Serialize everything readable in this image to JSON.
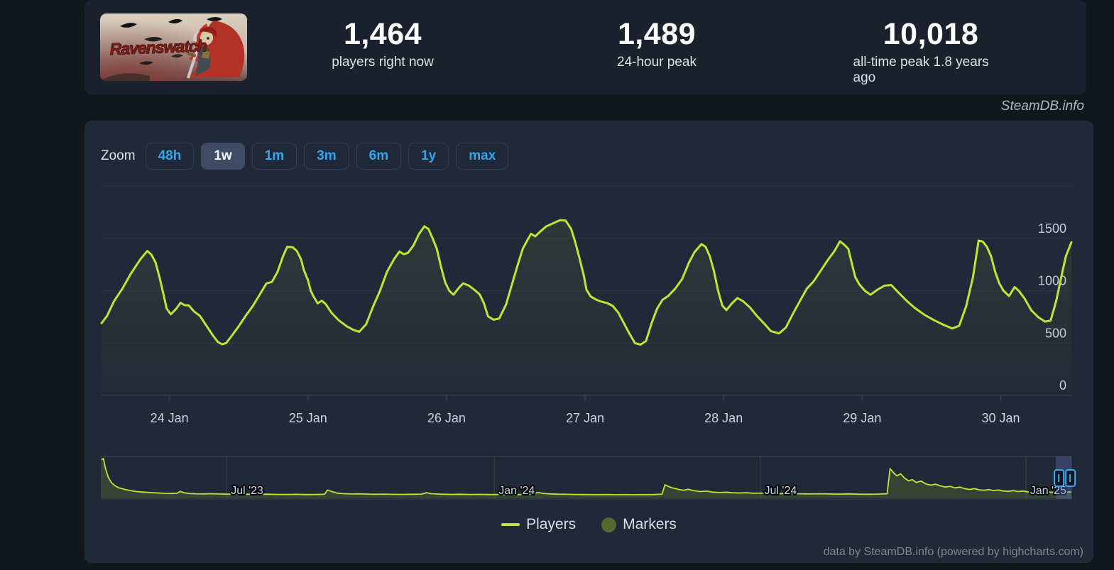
{
  "header": {
    "game_title": "Ravenswatch",
    "stats": [
      {
        "value": "1,464",
        "label": "players right now"
      },
      {
        "value": "1,489",
        "label": "24-hour peak"
      },
      {
        "value": "10,018",
        "label": "all-time peak 1.8 years ago"
      }
    ]
  },
  "watermark": "SteamDB.info",
  "toolbar": {
    "zoom_label": "Zoom",
    "buttons": [
      {
        "label": "48h",
        "active": false
      },
      {
        "label": "1w",
        "active": true
      },
      {
        "label": "1m",
        "active": false
      },
      {
        "label": "3m",
        "active": false
      },
      {
        "label": "6m",
        "active": false
      },
      {
        "label": "1y",
        "active": false
      },
      {
        "label": "max",
        "active": false
      }
    ]
  },
  "chart_data": {
    "type": "line",
    "series_name": "Players",
    "x_axis": {
      "unit": "day",
      "labels": [
        "24 Jan",
        "25 Jan",
        "26 Jan",
        "27 Jan",
        "28 Jan",
        "29 Jan",
        "30 Jan"
      ],
      "range_days": [
        -0.49,
        6.51
      ]
    },
    "y_axis": {
      "ticks": [
        0,
        500,
        1000,
        1500
      ],
      "grid_max": 2000
    },
    "points": [
      [
        -0.49,
        690
      ],
      [
        -0.45,
        760
      ],
      [
        -0.4,
        900
      ],
      [
        -0.34,
        1020
      ],
      [
        -0.28,
        1160
      ],
      [
        -0.21,
        1300
      ],
      [
        -0.16,
        1380
      ],
      [
        -0.13,
        1345
      ],
      [
        -0.1,
        1270
      ],
      [
        -0.07,
        1120
      ],
      [
        -0.04,
        950
      ],
      [
        -0.02,
        830
      ],
      [
        0.01,
        775
      ],
      [
        0.05,
        830
      ],
      [
        0.08,
        885
      ],
      [
        0.11,
        862
      ],
      [
        0.14,
        860
      ],
      [
        0.18,
        800
      ],
      [
        0.22,
        760
      ],
      [
        0.26,
        680
      ],
      [
        0.31,
        580
      ],
      [
        0.35,
        510
      ],
      [
        0.38,
        488
      ],
      [
        0.41,
        500
      ],
      [
        0.45,
        570
      ],
      [
        0.5,
        660
      ],
      [
        0.55,
        760
      ],
      [
        0.6,
        850
      ],
      [
        0.65,
        960
      ],
      [
        0.7,
        1070
      ],
      [
        0.74,
        1085
      ],
      [
        0.78,
        1180
      ],
      [
        0.82,
        1330
      ],
      [
        0.85,
        1420
      ],
      [
        0.89,
        1415
      ],
      [
        0.92,
        1380
      ],
      [
        0.95,
        1300
      ],
      [
        0.97,
        1200
      ],
      [
        1.0,
        1100
      ],
      [
        1.02,
        1000
      ],
      [
        1.04,
        946
      ],
      [
        1.07,
        880
      ],
      [
        1.1,
        905
      ],
      [
        1.13,
        870
      ],
      [
        1.17,
        790
      ],
      [
        1.22,
        720
      ],
      [
        1.28,
        660
      ],
      [
        1.33,
        625
      ],
      [
        1.37,
        608
      ],
      [
        1.42,
        680
      ],
      [
        1.47,
        850
      ],
      [
        1.52,
        1000
      ],
      [
        1.57,
        1180
      ],
      [
        1.62,
        1300
      ],
      [
        1.66,
        1375
      ],
      [
        1.69,
        1350
      ],
      [
        1.72,
        1360
      ],
      [
        1.76,
        1430
      ],
      [
        1.8,
        1540
      ],
      [
        1.84,
        1617
      ],
      [
        1.87,
        1590
      ],
      [
        1.9,
        1500
      ],
      [
        1.93,
        1400
      ],
      [
        1.96,
        1230
      ],
      [
        1.99,
        1080
      ],
      [
        2.02,
        1000
      ],
      [
        2.05,
        962
      ],
      [
        2.09,
        1030
      ],
      [
        2.12,
        1071
      ],
      [
        2.16,
        1050
      ],
      [
        2.2,
        1010
      ],
      [
        2.24,
        965
      ],
      [
        2.27,
        880
      ],
      [
        2.3,
        755
      ],
      [
        2.34,
        723
      ],
      [
        2.38,
        735
      ],
      [
        2.43,
        870
      ],
      [
        2.47,
        1050
      ],
      [
        2.51,
        1230
      ],
      [
        2.55,
        1400
      ],
      [
        2.58,
        1475
      ],
      [
        2.61,
        1545
      ],
      [
        2.64,
        1520
      ],
      [
        2.68,
        1570
      ],
      [
        2.72,
        1615
      ],
      [
        2.77,
        1645
      ],
      [
        2.82,
        1675
      ],
      [
        2.86,
        1670
      ],
      [
        2.9,
        1590
      ],
      [
        2.93,
        1460
      ],
      [
        2.96,
        1310
      ],
      [
        2.99,
        1150
      ],
      [
        3.01,
        1010
      ],
      [
        3.04,
        945
      ],
      [
        3.08,
        915
      ],
      [
        3.12,
        895
      ],
      [
        3.16,
        882
      ],
      [
        3.2,
        855
      ],
      [
        3.24,
        790
      ],
      [
        3.28,
        690
      ],
      [
        3.32,
        590
      ],
      [
        3.36,
        500
      ],
      [
        3.4,
        485
      ],
      [
        3.44,
        520
      ],
      [
        3.48,
        690
      ],
      [
        3.52,
        830
      ],
      [
        3.56,
        915
      ],
      [
        3.6,
        950
      ],
      [
        3.65,
        1020
      ],
      [
        3.7,
        1110
      ],
      [
        3.75,
        1270
      ],
      [
        3.79,
        1370
      ],
      [
        3.84,
        1446
      ],
      [
        3.87,
        1420
      ],
      [
        3.9,
        1330
      ],
      [
        3.93,
        1190
      ],
      [
        3.96,
        1000
      ],
      [
        3.99,
        860
      ],
      [
        4.02,
        815
      ],
      [
        4.06,
        880
      ],
      [
        4.1,
        930
      ],
      [
        4.14,
        900
      ],
      [
        4.19,
        840
      ],
      [
        4.24,
        760
      ],
      [
        4.29,
        690
      ],
      [
        4.34,
        615
      ],
      [
        4.4,
        592
      ],
      [
        4.45,
        650
      ],
      [
        4.5,
        780
      ],
      [
        4.55,
        900
      ],
      [
        4.6,
        1020
      ],
      [
        4.65,
        1090
      ],
      [
        4.7,
        1190
      ],
      [
        4.75,
        1290
      ],
      [
        4.8,
        1380
      ],
      [
        4.84,
        1473
      ],
      [
        4.87,
        1440
      ],
      [
        4.9,
        1400
      ],
      [
        4.92,
        1290
      ],
      [
        4.95,
        1130
      ],
      [
        4.98,
        1060
      ],
      [
        5.02,
        1000
      ],
      [
        5.06,
        962
      ],
      [
        5.11,
        1010
      ],
      [
        5.16,
        1048
      ],
      [
        5.21,
        1055
      ],
      [
        5.26,
        985
      ],
      [
        5.32,
        905
      ],
      [
        5.38,
        835
      ],
      [
        5.45,
        770
      ],
      [
        5.52,
        718
      ],
      [
        5.59,
        672
      ],
      [
        5.65,
        640
      ],
      [
        5.7,
        665
      ],
      [
        5.75,
        850
      ],
      [
        5.8,
        1130
      ],
      [
        5.84,
        1480
      ],
      [
        5.87,
        1470
      ],
      [
        5.9,
        1420
      ],
      [
        5.93,
        1330
      ],
      [
        5.96,
        1180
      ],
      [
        5.99,
        1070
      ],
      [
        6.02,
        1000
      ],
      [
        6.06,
        950
      ],
      [
        6.1,
        1035
      ],
      [
        6.13,
        1000
      ],
      [
        6.17,
        930
      ],
      [
        6.22,
        815
      ],
      [
        6.27,
        748
      ],
      [
        6.32,
        705
      ],
      [
        6.36,
        715
      ],
      [
        6.4,
        900
      ],
      [
        6.44,
        1150
      ],
      [
        6.47,
        1330
      ],
      [
        6.51,
        1464
      ]
    ],
    "colors": {
      "line": "#b9e734",
      "grid": "#2a3442",
      "axis": "#3c4755",
      "tick_text": "#ccd2d9"
    }
  },
  "navigator": {
    "max_value": 10018,
    "grid_labels": [
      {
        "f": 0.129,
        "label": "Jul '23"
      },
      {
        "f": 0.405,
        "label": "Jan '24"
      },
      {
        "f": 0.679,
        "label": "Jul '24"
      },
      {
        "f": 0.953,
        "label": "Jan '25"
      }
    ],
    "selection": {
      "f_start": 0.984,
      "f_end": 1.0
    },
    "points": [
      [
        0.0,
        9700
      ],
      [
        0.002,
        10018
      ],
      [
        0.004,
        7500
      ],
      [
        0.007,
        5200
      ],
      [
        0.01,
        3900
      ],
      [
        0.014,
        3000
      ],
      [
        0.018,
        2500
      ],
      [
        0.024,
        2100
      ],
      [
        0.03,
        1800
      ],
      [
        0.036,
        1550
      ],
      [
        0.043,
        1400
      ],
      [
        0.05,
        1300
      ],
      [
        0.058,
        1180
      ],
      [
        0.065,
        1100
      ],
      [
        0.072,
        1060
      ],
      [
        0.078,
        1120
      ],
      [
        0.081,
        1600
      ],
      [
        0.085,
        1260
      ],
      [
        0.09,
        1050
      ],
      [
        0.097,
        980
      ],
      [
        0.105,
        940
      ],
      [
        0.113,
        1000
      ],
      [
        0.12,
        930
      ],
      [
        0.13,
        900
      ],
      [
        0.14,
        940
      ],
      [
        0.15,
        870
      ],
      [
        0.16,
        830
      ],
      [
        0.17,
        880
      ],
      [
        0.18,
        820
      ],
      [
        0.19,
        800
      ],
      [
        0.2,
        840
      ],
      [
        0.21,
        790
      ],
      [
        0.22,
        810
      ],
      [
        0.23,
        850
      ],
      [
        0.233,
        1950
      ],
      [
        0.238,
        1500
      ],
      [
        0.243,
        1150
      ],
      [
        0.25,
        1000
      ],
      [
        0.258,
        930
      ],
      [
        0.266,
        960
      ],
      [
        0.274,
        890
      ],
      [
        0.282,
        860
      ],
      [
        0.29,
        890
      ],
      [
        0.3,
        840
      ],
      [
        0.31,
        820
      ],
      [
        0.32,
        850
      ],
      [
        0.33,
        900
      ],
      [
        0.335,
        1250
      ],
      [
        0.34,
        1000
      ],
      [
        0.35,
        870
      ],
      [
        0.36,
        820
      ],
      [
        0.37,
        850
      ],
      [
        0.38,
        800
      ],
      [
        0.39,
        820
      ],
      [
        0.4,
        780
      ],
      [
        0.41,
        800
      ],
      [
        0.42,
        760
      ],
      [
        0.43,
        780
      ],
      [
        0.44,
        820
      ],
      [
        0.45,
        1300
      ],
      [
        0.455,
        1100
      ],
      [
        0.462,
        950
      ],
      [
        0.47,
        880
      ],
      [
        0.48,
        840
      ],
      [
        0.49,
        800
      ],
      [
        0.5,
        780
      ],
      [
        0.51,
        760
      ],
      [
        0.52,
        780
      ],
      [
        0.53,
        750
      ],
      [
        0.54,
        770
      ],
      [
        0.55,
        740
      ],
      [
        0.56,
        760
      ],
      [
        0.57,
        780
      ],
      [
        0.578,
        900
      ],
      [
        0.581,
        3300
      ],
      [
        0.585,
        2800
      ],
      [
        0.59,
        2400
      ],
      [
        0.595,
        2100
      ],
      [
        0.6,
        1900
      ],
      [
        0.605,
        2150
      ],
      [
        0.61,
        1800
      ],
      [
        0.617,
        1550
      ],
      [
        0.624,
        1650
      ],
      [
        0.63,
        1400
      ],
      [
        0.637,
        1300
      ],
      [
        0.644,
        1400
      ],
      [
        0.65,
        1250
      ],
      [
        0.658,
        1180
      ],
      [
        0.665,
        1260
      ],
      [
        0.672,
        1120
      ],
      [
        0.68,
        1160
      ],
      [
        0.69,
        1060
      ],
      [
        0.7,
        1020
      ],
      [
        0.71,
        1060
      ],
      [
        0.72,
        980
      ],
      [
        0.73,
        950
      ],
      [
        0.74,
        990
      ],
      [
        0.75,
        930
      ],
      [
        0.76,
        900
      ],
      [
        0.77,
        940
      ],
      [
        0.78,
        880
      ],
      [
        0.79,
        860
      ],
      [
        0.8,
        890
      ],
      [
        0.81,
        980
      ],
      [
        0.813,
        7400
      ],
      [
        0.817,
        6300
      ],
      [
        0.82,
        5600
      ],
      [
        0.824,
        6100
      ],
      [
        0.828,
        5000
      ],
      [
        0.832,
        4300
      ],
      [
        0.836,
        4600
      ],
      [
        0.84,
        3900
      ],
      [
        0.845,
        4250
      ],
      [
        0.85,
        3500
      ],
      [
        0.855,
        3200
      ],
      [
        0.86,
        3450
      ],
      [
        0.865,
        3000
      ],
      [
        0.87,
        2700
      ],
      [
        0.875,
        2900
      ],
      [
        0.88,
        2500
      ],
      [
        0.885,
        2700
      ],
      [
        0.89,
        2300
      ],
      [
        0.895,
        2100
      ],
      [
        0.9,
        2300
      ],
      [
        0.905,
        2000
      ],
      [
        0.91,
        1900
      ],
      [
        0.915,
        2050
      ],
      [
        0.92,
        1800
      ],
      [
        0.925,
        1950
      ],
      [
        0.93,
        1700
      ],
      [
        0.935,
        1600
      ],
      [
        0.94,
        1780
      ],
      [
        0.945,
        1550
      ],
      [
        0.95,
        1700
      ],
      [
        0.955,
        1500
      ],
      [
        0.96,
        1420
      ],
      [
        0.965,
        1580
      ],
      [
        0.97,
        1380
      ],
      [
        0.975,
        1500
      ],
      [
        0.98,
        1330
      ],
      [
        0.985,
        1450
      ],
      [
        0.99,
        1300
      ],
      [
        0.995,
        1420
      ],
      [
        1.0,
        1460
      ]
    ],
    "colors": {
      "border": "#39434f",
      "selection": "rgba(98,118,200,0.35)",
      "handle": "#3fa9ec"
    }
  },
  "legend": {
    "items": [
      {
        "label": "Players",
        "swatch": "line",
        "color": "#b9e734"
      },
      {
        "label": "Markers",
        "swatch": "circle",
        "color": "#56682e"
      }
    ]
  },
  "credits": "data by SteamDB.info (powered by highcharts.com)"
}
